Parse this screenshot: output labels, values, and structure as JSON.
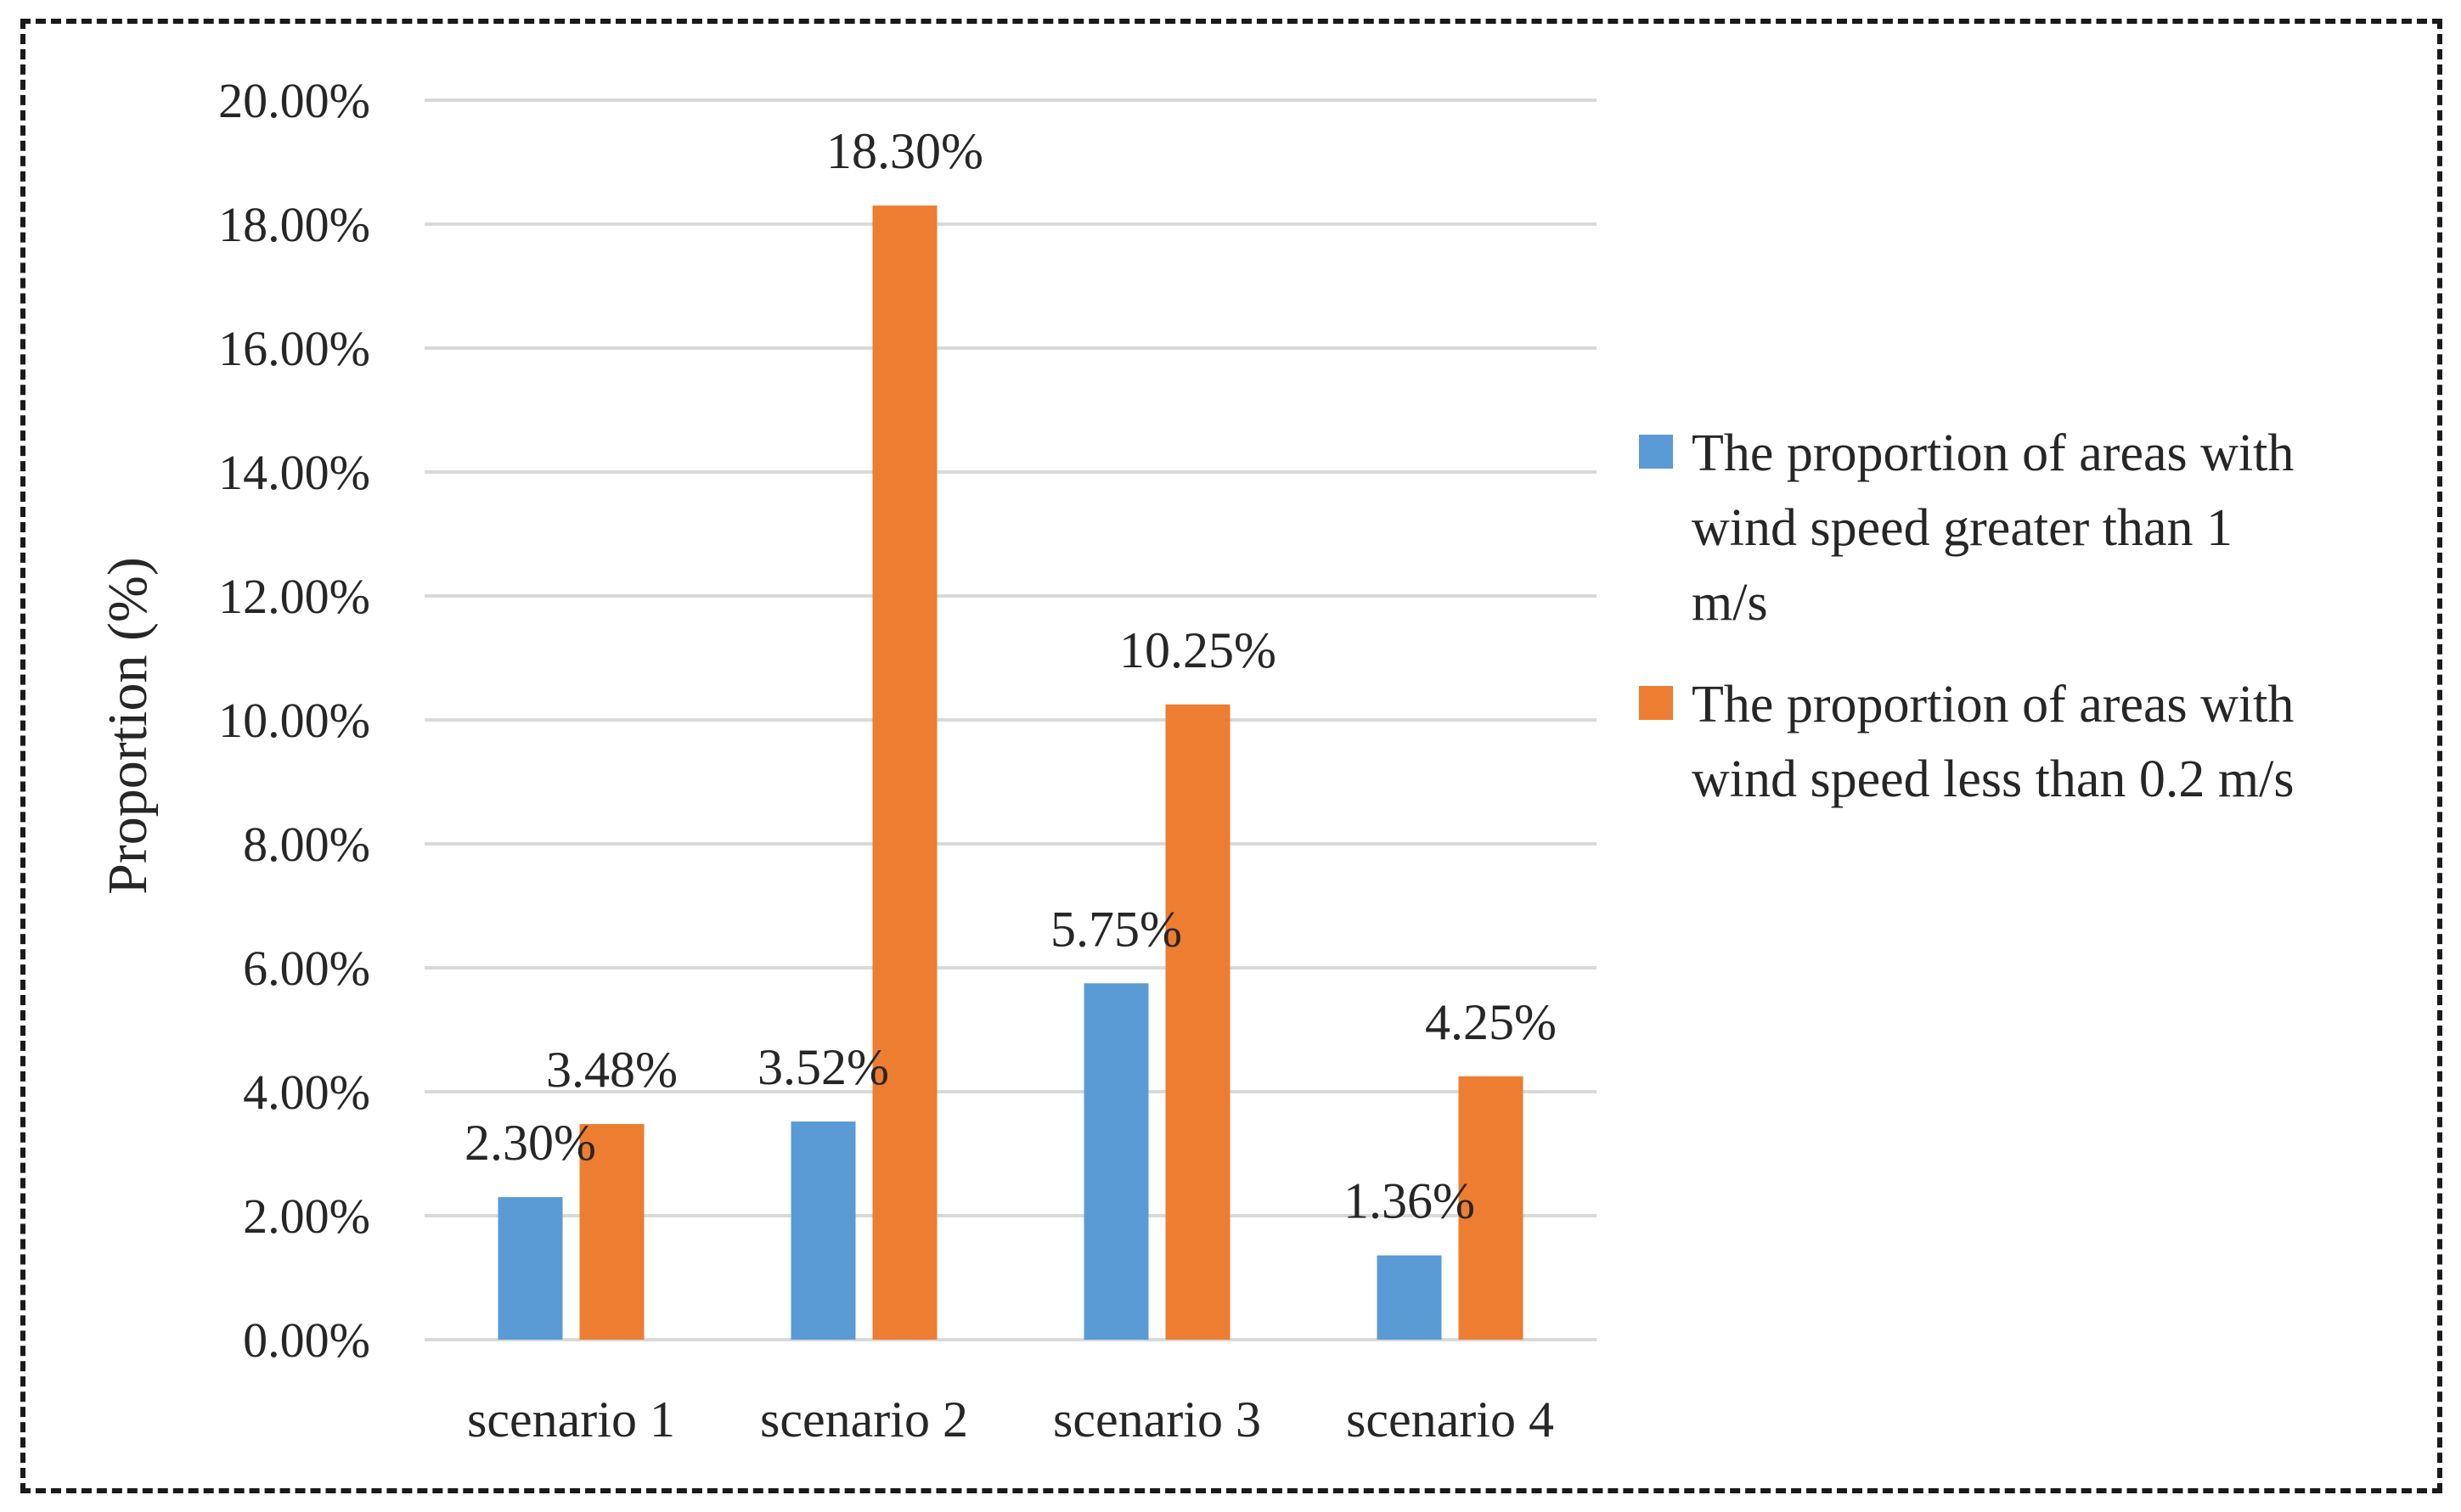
{
  "chart_data": {
    "type": "bar",
    "title": "",
    "xlabel": "",
    "ylabel": "Proportion (%)",
    "ylim": [
      0,
      20
    ],
    "yticks": [
      "0.00%",
      "2.00%",
      "4.00%",
      "6.00%",
      "8.00%",
      "10.00%",
      "12.00%",
      "14.00%",
      "16.00%",
      "18.00%",
      "20.00%"
    ],
    "categories": [
      "scenario 1",
      "scenario 2",
      "scenario 3",
      "scenario 4"
    ],
    "grid": true,
    "legend_position": "right",
    "series": [
      {
        "name": "The proportion of areas with wind speed greater than 1 m/s",
        "legend_lines": [
          "The proportion of areas with",
          "wind speed greater than 1",
          "m/s"
        ],
        "color": "#5B9BD5",
        "values": [
          2.3,
          3.52,
          5.75,
          1.36
        ],
        "labels": [
          "2.30%",
          "3.52%",
          "5.75%",
          "1.36%"
        ]
      },
      {
        "name": "The proportion of areas with wind speed less than 0.2 m/s",
        "legend_lines": [
          "The proportion of areas with",
          "wind speed less than 0.2 m/s"
        ],
        "color": "#ED7D31",
        "values": [
          3.48,
          18.3,
          10.25,
          4.25
        ],
        "labels": [
          "3.48%",
          "18.30%",
          "10.25%",
          "4.25%"
        ]
      }
    ]
  },
  "colors": {
    "grid": "#D9D9D9",
    "text": "#262626",
    "frame": "#1a1a1a"
  }
}
